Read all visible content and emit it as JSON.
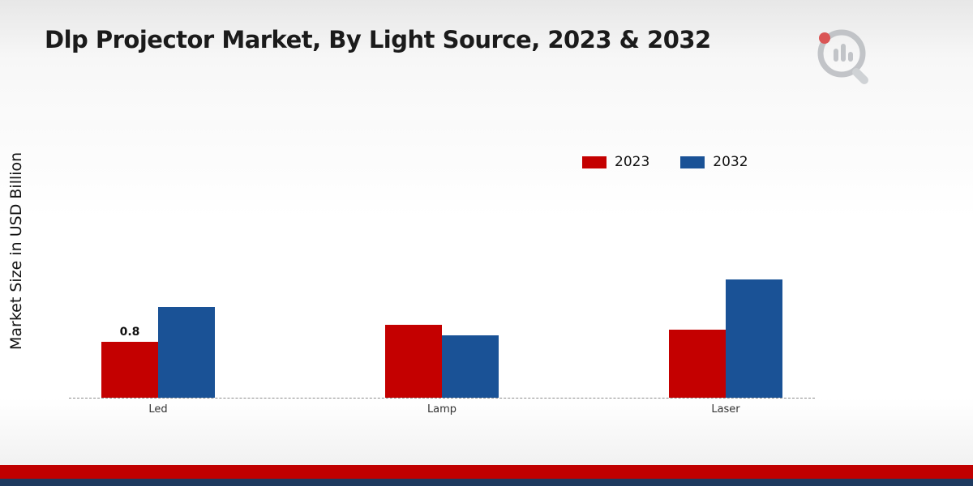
{
  "page": {
    "title": "Dlp Projector Market, By Light Source, 2023 & 2032",
    "ylabel": "Market Size in USD Billion"
  },
  "legend": {
    "items": [
      {
        "label": "2023",
        "color": "#c40000"
      },
      {
        "label": "2032",
        "color": "#1a5296"
      }
    ]
  },
  "chart_data": {
    "type": "bar",
    "title": "Dlp Projector Market, By Light Source, 2023 & 2032",
    "xlabel": "",
    "ylabel": "Market Size in USD Billion",
    "categories": [
      "Led",
      "Lamp",
      "Laser"
    ],
    "series": [
      {
        "name": "2023",
        "color": "#c40000",
        "values": [
          0.8,
          1.05,
          0.98
        ]
      },
      {
        "name": "2032",
        "color": "#1a5296",
        "values": [
          1.3,
          0.9,
          1.7
        ]
      }
    ],
    "ylim": [
      0,
      2
    ],
    "grid": false,
    "legend_position": "top-right",
    "baseline_style": "dashed",
    "data_labels": [
      {
        "category": "Led",
        "series": "2023",
        "text": "0.8"
      }
    ]
  },
  "colors": {
    "bar_red": "#c40000",
    "bar_blue": "#1a5296",
    "footer_red": "#c00000",
    "footer_navy": "#1e3a5f",
    "logo_gray": "#b9bcc0",
    "logo_red": "#d63a3a"
  }
}
